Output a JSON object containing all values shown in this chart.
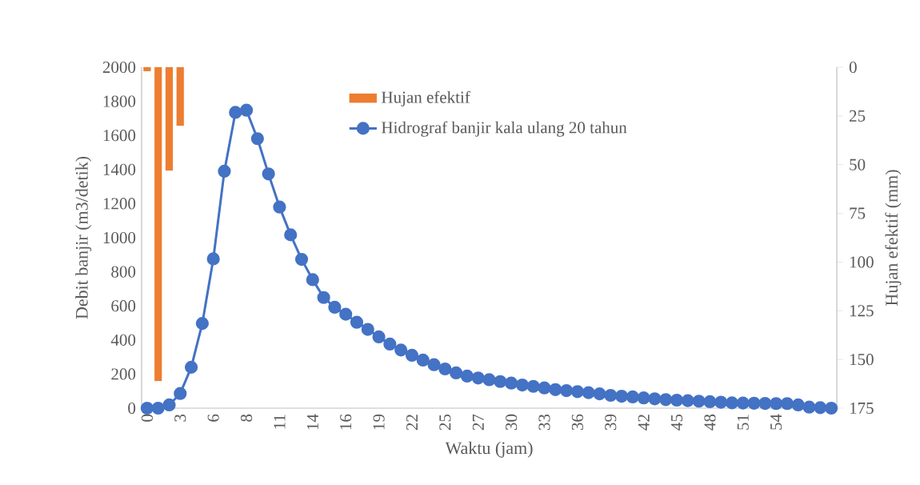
{
  "chart_data": {
    "type": "line",
    "xlabel": "Waktu (jam)",
    "ylabel": "Debit banjir (m3/detik)",
    "y2label": "Hujan efektif (mm)",
    "categories": [
      "0",
      null,
      null,
      "3",
      null,
      null,
      "6",
      null,
      null,
      "8",
      null,
      null,
      "11",
      null,
      null,
      "14",
      null,
      null,
      "16",
      null,
      null,
      "19",
      null,
      null,
      "22",
      null,
      null,
      "25",
      null,
      null,
      "27",
      null,
      null,
      "30",
      null,
      null,
      "33",
      null,
      null,
      "36",
      null,
      null,
      "39",
      null,
      null,
      "42",
      null,
      null,
      "45",
      null,
      null,
      "48",
      null,
      null,
      "51",
      null,
      null,
      "54",
      null,
      null,
      null,
      null,
      null
    ],
    "series": [
      {
        "name": "Hujan efektif",
        "type": "bar",
        "axis": "y2",
        "color": "#ed7d31",
        "values": [
          2,
          161,
          53,
          30,
          null,
          null,
          null,
          null,
          null,
          null,
          null,
          null,
          null,
          null,
          null,
          null,
          null,
          null,
          null,
          null,
          null,
          null,
          null,
          null,
          null,
          null,
          null,
          null,
          null,
          null,
          null,
          null,
          null,
          null,
          null,
          null,
          null,
          null,
          null,
          null,
          null,
          null,
          null,
          null,
          null,
          null,
          null,
          null,
          null,
          null,
          null,
          null,
          null,
          null,
          null,
          null,
          null,
          null,
          null,
          null,
          null,
          null,
          null
        ]
      },
      {
        "name": "Hidrograf banjir kala ulang 20 tahun",
        "color": "#4472c4",
        "values": [
          0,
          0,
          19,
          86,
          240,
          497,
          876,
          1390,
          1735,
          1748,
          1581,
          1374,
          1180,
          1017,
          873,
          754,
          649,
          592,
          551,
          504,
          462,
          418,
          376,
          341,
          310,
          282,
          255,
          230,
          207,
          188,
          177,
          167,
          156,
          147,
          136,
          128,
          119,
          109,
          103,
          97,
          91,
          84,
          75,
          70,
          66,
          60,
          55,
          50,
          47,
          44,
          41,
          38,
          35,
          31,
          30,
          29,
          28,
          27,
          27,
          19,
          6,
          3,
          0
        ]
      }
    ],
    "ylim": [
      0,
      2000
    ],
    "yticks": [
      0,
      200,
      400,
      600,
      800,
      1000,
      1200,
      1400,
      1600,
      1800,
      2000
    ],
    "y2lim": [
      175,
      0
    ],
    "y2ticks": [
      0,
      25,
      50,
      75,
      100,
      125,
      150,
      175
    ],
    "legend": "top",
    "marker": "circle"
  }
}
